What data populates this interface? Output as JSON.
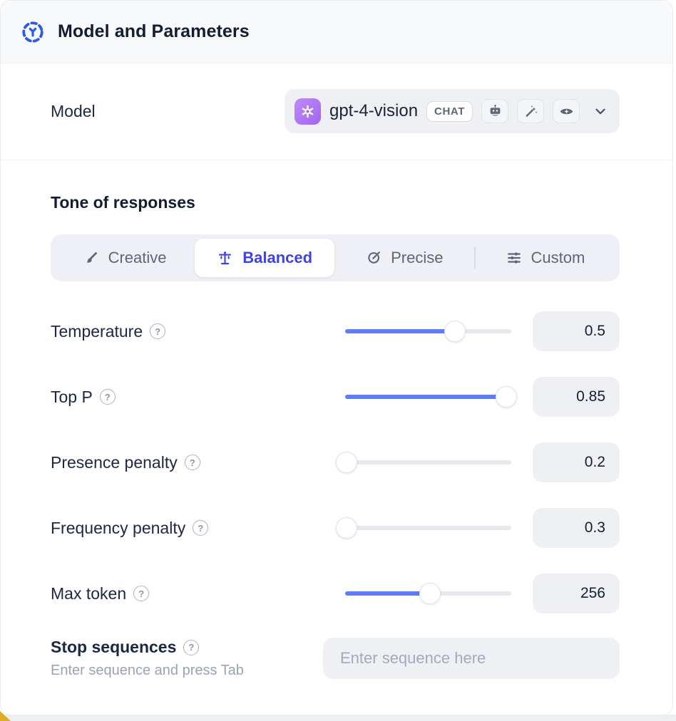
{
  "header": {
    "title": "Model and Parameters"
  },
  "model_row": {
    "label": "Model",
    "selected_model": "gpt-4-vision",
    "type_badge": "CHAT",
    "capability_icons": [
      "robot-icon",
      "magic-wand-icon",
      "vision-eye-icon"
    ]
  },
  "tone": {
    "heading": "Tone of responses",
    "tabs": [
      {
        "label": "Creative",
        "icon": "paintbrush-icon",
        "active": false
      },
      {
        "label": "Balanced",
        "icon": "balance-scale-icon",
        "active": true
      },
      {
        "label": "Precise",
        "icon": "target-arrow-icon",
        "active": false
      },
      {
        "label": "Custom",
        "icon": "sliders-icon",
        "active": false
      }
    ]
  },
  "parameters": [
    {
      "label": "Temperature",
      "value": "0.5",
      "fill_percent": 66
    },
    {
      "label": "Top P",
      "value": "0.85",
      "fill_percent": 97
    },
    {
      "label": "Presence penalty",
      "value": "0.2",
      "fill_percent": 1
    },
    {
      "label": "Frequency penalty",
      "value": "0.3",
      "fill_percent": 1
    },
    {
      "label": "Max token",
      "value": "256",
      "fill_percent": 51
    }
  ],
  "stop_sequences": {
    "label": "Stop sequences",
    "hint": "Enter sequence and press Tab",
    "placeholder": "Enter sequence here"
  },
  "help_glyph": "?",
  "colors": {
    "accent_blue": "#5e7cf7",
    "active_tab_text": "#4044dd",
    "header_icon_blue": "#2d5be3",
    "openai_purple": "#a463f2",
    "surface_gray": "#eef0f4"
  }
}
